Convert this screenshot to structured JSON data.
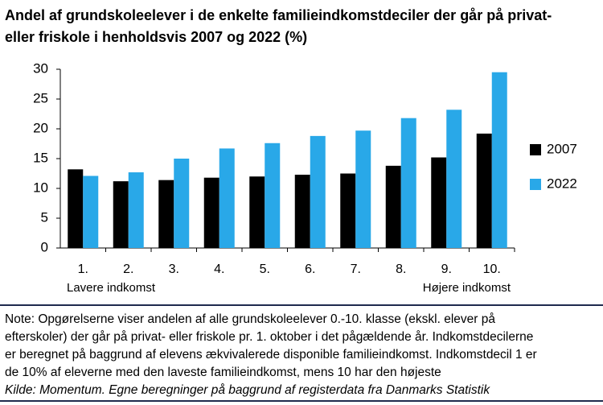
{
  "chart_data": {
    "type": "bar",
    "title_lines": [
      "Andel af grundskoleelever i de enkelte familieindkomstdeciler der går på privat-",
      "eller friskole i henholdsvis 2007 og 2022 (%)"
    ],
    "categories": [
      "1.",
      "2.",
      "3.",
      "4.",
      "5.",
      "6.",
      "7.",
      "8.",
      "9.",
      "10."
    ],
    "series": [
      {
        "name": "2007",
        "color": "#000000",
        "values": [
          13.2,
          11.2,
          11.4,
          11.8,
          12.0,
          12.3,
          12.5,
          13.8,
          15.2,
          19.2
        ]
      },
      {
        "name": "2022",
        "color": "#29a8e8",
        "values": [
          12.1,
          12.7,
          15.0,
          16.7,
          17.6,
          18.8,
          19.7,
          21.8,
          23.2,
          29.5
        ]
      }
    ],
    "ylim": [
      0,
      30
    ],
    "yticks": [
      0,
      5,
      10,
      15,
      20,
      25,
      30
    ],
    "annotations": [
      "Lavere indkomst",
      "Højere indkomst"
    ],
    "legend": "right",
    "note_lines": [
      "Note: Opgørelserne viser andelen af alle grundskoleelever 0.-10. klasse (ekskl. elever på",
      "efterskoler) der går på privat- eller friskole pr. 1. oktober i det pågældende år. Indkomstdecilerne",
      "er beregnet på baggrund af elevens ækvivalerede disponible familieindkomst. Indkomstdecil 1 er",
      "de 10% af eleverne med den laveste familieindkomst, mens 10 har den højeste"
    ],
    "source": "Kilde: Momentum. Egne beregninger på baggrund af registerdata fra Danmarks Statistik"
  }
}
